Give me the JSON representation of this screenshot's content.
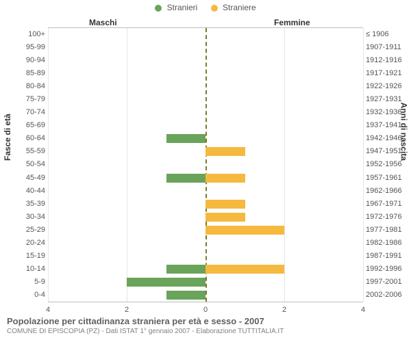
{
  "chart": {
    "type": "population-pyramid",
    "legend": {
      "male": {
        "label": "Stranieri",
        "color": "#6aa35a"
      },
      "female": {
        "label": "Straniere",
        "color": "#f5b93f"
      }
    },
    "columns": {
      "male_title": "Maschi",
      "female_title": "Femmine"
    },
    "y_axes": {
      "left_label": "Fasce di età",
      "right_label": "Anni di nascita"
    },
    "x_axis": {
      "max": 4,
      "ticks": [
        4,
        2,
        0,
        2,
        4
      ]
    },
    "grid_color": "#e5e5e5",
    "center_line_color": "#7a7a2a",
    "background_color": "#ffffff",
    "rows": [
      {
        "age": "100+",
        "birth": "≤ 1906",
        "m": 0,
        "f": 0
      },
      {
        "age": "95-99",
        "birth": "1907-1911",
        "m": 0,
        "f": 0
      },
      {
        "age": "90-94",
        "birth": "1912-1916",
        "m": 0,
        "f": 0
      },
      {
        "age": "85-89",
        "birth": "1917-1921",
        "m": 0,
        "f": 0
      },
      {
        "age": "80-84",
        "birth": "1922-1926",
        "m": 0,
        "f": 0
      },
      {
        "age": "75-79",
        "birth": "1927-1931",
        "m": 0,
        "f": 0
      },
      {
        "age": "70-74",
        "birth": "1932-1936",
        "m": 0,
        "f": 0
      },
      {
        "age": "65-69",
        "birth": "1937-1941",
        "m": 0,
        "f": 0
      },
      {
        "age": "60-64",
        "birth": "1942-1946",
        "m": 1,
        "f": 0
      },
      {
        "age": "55-59",
        "birth": "1947-1951",
        "m": 0,
        "f": 1
      },
      {
        "age": "50-54",
        "birth": "1952-1956",
        "m": 0,
        "f": 0
      },
      {
        "age": "45-49",
        "birth": "1957-1961",
        "m": 1,
        "f": 1
      },
      {
        "age": "40-44",
        "birth": "1962-1966",
        "m": 0,
        "f": 0
      },
      {
        "age": "35-39",
        "birth": "1967-1971",
        "m": 0,
        "f": 1
      },
      {
        "age": "30-34",
        "birth": "1972-1976",
        "m": 0,
        "f": 1
      },
      {
        "age": "25-29",
        "birth": "1977-1981",
        "m": 0,
        "f": 2
      },
      {
        "age": "20-24",
        "birth": "1982-1986",
        "m": 0,
        "f": 0
      },
      {
        "age": "15-19",
        "birth": "1987-1991",
        "m": 0,
        "f": 0
      },
      {
        "age": "10-14",
        "birth": "1992-1996",
        "m": 1,
        "f": 2
      },
      {
        "age": "5-9",
        "birth": "1997-2001",
        "m": 2,
        "f": 0
      },
      {
        "age": "0-4",
        "birth": "2002-2006",
        "m": 1,
        "f": 0
      }
    ]
  },
  "footer": {
    "title": "Popolazione per cittadinanza straniera per età e sesso - 2007",
    "subtitle": "COMUNE DI EPISCOPIA (PZ) - Dati ISTAT 1° gennaio 2007 - Elaborazione TUTTITALIA.IT"
  }
}
